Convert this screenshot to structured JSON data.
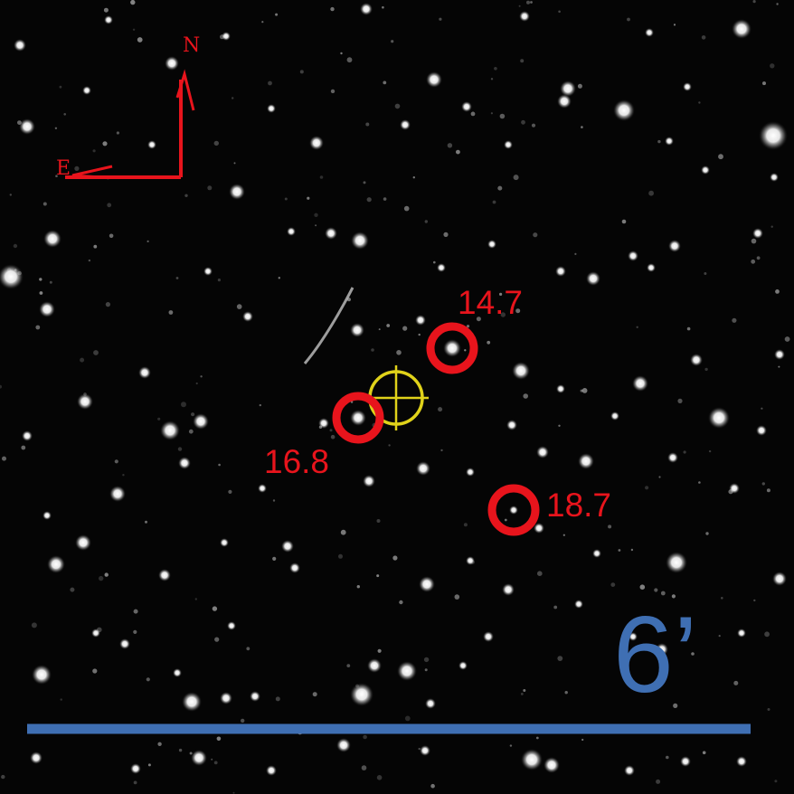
{
  "compass": {
    "north_label": "N",
    "east_label": "E",
    "color": "#e8141c"
  },
  "target_marker": {
    "icon": "crosshair-icon",
    "color": "#e0d21a"
  },
  "circle_color": "#e8141c",
  "stars_marked": [
    {
      "label": "14.7"
    },
    {
      "label": "16.8"
    },
    {
      "label": "18.7"
    }
  ],
  "scale_bar": {
    "label": "6’",
    "color": "#3f6fb3"
  }
}
